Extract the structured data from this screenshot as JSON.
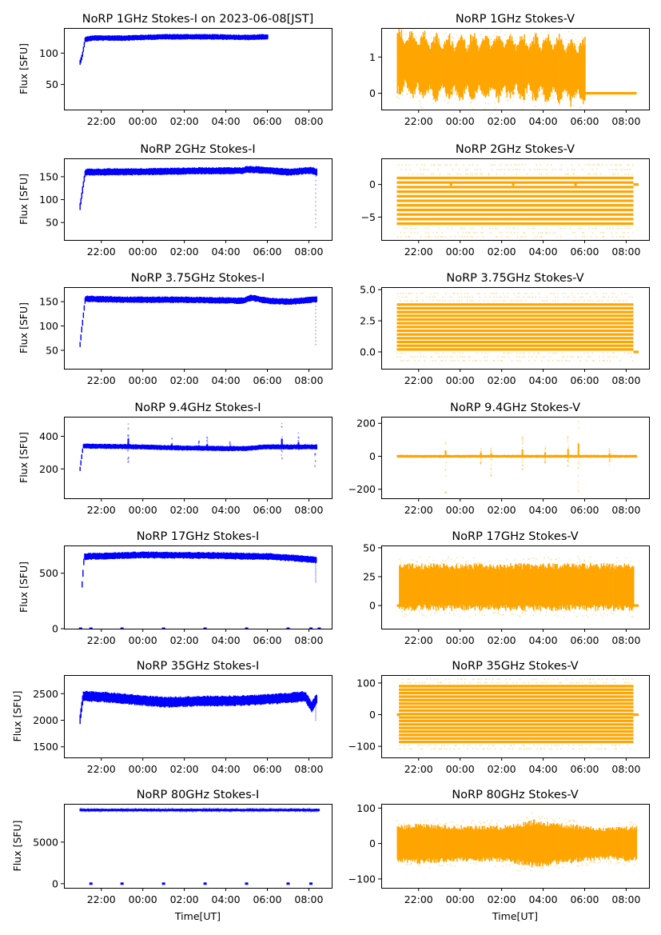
{
  "figure": {
    "type": "multi-panel time series (scatter)",
    "rows": 7,
    "cols": 2
  },
  "chart_data": [
    {
      "id": "1ghz-i",
      "type": "scatter",
      "row": 0,
      "col": 0,
      "title": "NoRP 1GHz Stokes-I on 2023-06-08[JST]",
      "xlabel": "",
      "ylabel": "Flux [SFU]",
      "color": "#0000ff",
      "xlim_hours": [
        20.2,
        33.1
      ],
      "xticks": [
        "22:00",
        "00:00",
        "02:00",
        "04:00",
        "06:00",
        "08:00"
      ],
      "xtick_hours": [
        22,
        24,
        26,
        28,
        30,
        32
      ],
      "ylim": [
        10,
        140
      ],
      "yticks": [
        50,
        100
      ],
      "series": {
        "start_hour": 20.95,
        "end_hour": 30.0,
        "profile": [
          [
            20.95,
            85
          ],
          [
            21.05,
            95
          ],
          [
            21.2,
            122
          ],
          [
            21.6,
            124
          ],
          [
            23.0,
            124
          ],
          [
            25.0,
            126
          ],
          [
            27.0,
            126
          ],
          [
            29.0,
            125
          ],
          [
            30.0,
            126
          ]
        ],
        "band": 4,
        "outliers": "none",
        "extra_segments": []
      }
    },
    {
      "id": "1ghz-v",
      "type": "scatter",
      "row": 0,
      "col": 1,
      "title": "NoRP 1GHz Stokes-V",
      "xlabel": "",
      "ylabel": "",
      "color": "#ffa500",
      "xlim_hours": [
        20.2,
        33.1
      ],
      "xticks": [
        "22:00",
        "00:00",
        "02:00",
        "04:00",
        "06:00",
        "08:00"
      ],
      "xtick_hours": [
        22,
        24,
        26,
        28,
        30,
        32
      ],
      "ylim": [
        -0.45,
        1.8
      ],
      "yticks": [
        0,
        1
      ],
      "series": {
        "start_hour": 20.95,
        "end_hour": 30.0,
        "profile": [
          [
            20.95,
            0.9
          ],
          [
            22,
            0.75
          ],
          [
            24,
            0.7
          ],
          [
            26,
            0.75
          ],
          [
            28,
            0.7
          ],
          [
            30,
            0.6
          ]
        ],
        "band": 0.9,
        "outliers": "sparse",
        "extra_segments": [
          {
            "from_hour": 30.0,
            "to_hour": 32.5,
            "value": 0.0
          },
          {
            "from_hour": 23.5,
            "to_hour": 23.6,
            "value": 0.0
          },
          {
            "from_hour": 26.5,
            "to_hour": 26.6,
            "value": 0.0
          }
        ]
      }
    },
    {
      "id": "2ghz-i",
      "type": "scatter",
      "row": 1,
      "col": 0,
      "title": "NoRP 2GHz Stokes-I",
      "xlabel": "",
      "ylabel": "Flux [SFU]",
      "color": "#0000ff",
      "xlim_hours": [
        20.2,
        33.1
      ],
      "xticks": [
        "22:00",
        "00:00",
        "02:00",
        "04:00",
        "06:00",
        "08:00"
      ],
      "xtick_hours": [
        22,
        24,
        26,
        28,
        30,
        32
      ],
      "ylim": [
        12,
        190
      ],
      "yticks": [
        50,
        100,
        150
      ],
      "series": {
        "start_hour": 20.95,
        "end_hour": 32.35,
        "profile": [
          [
            20.95,
            85
          ],
          [
            21.2,
            160
          ],
          [
            24,
            161
          ],
          [
            27,
            163
          ],
          [
            28.8,
            163
          ],
          [
            29,
            166
          ],
          [
            30,
            164
          ],
          [
            31,
            160
          ],
          [
            32.1,
            164
          ],
          [
            32.35,
            160
          ]
        ],
        "band": 7,
        "outliers": "drop-at-end",
        "extra_segments": []
      }
    },
    {
      "id": "2ghz-v",
      "type": "scatter",
      "row": 1,
      "col": 1,
      "title": "NoRP 2GHz Stokes-V",
      "xlabel": "",
      "ylabel": "",
      "color": "#ffa500",
      "xlim_hours": [
        20.2,
        33.1
      ],
      "xticks": [
        "22:00",
        "00:00",
        "02:00",
        "04:00",
        "06:00",
        "08:00"
      ],
      "xtick_hours": [
        22,
        24,
        26,
        28,
        30,
        32
      ],
      "ylim": [
        -8.5,
        4.0
      ],
      "yticks": [
        -5,
        0
      ],
      "series": {
        "start_hour": 20.95,
        "end_hour": 32.35,
        "quantized_levels": [
          -6.0,
          -5.3,
          -4.6,
          -3.9,
          -3.2,
          -2.5,
          -1.8,
          -1.1,
          -0.4,
          0.3,
          1.0
        ],
        "sparse_levels": [
          -8.0,
          -7.4,
          -6.7,
          1.6,
          2.3,
          3.0
        ],
        "outliers": "sparse",
        "extra_segments": [
          {
            "from_hour": 23.5,
            "to_hour": 23.6,
            "value": 0.0
          },
          {
            "from_hour": 26.5,
            "to_hour": 26.6,
            "value": 0.0
          },
          {
            "from_hour": 29.5,
            "to_hour": 29.6,
            "value": 0.0
          },
          {
            "from_hour": 32.35,
            "to_hour": 32.6,
            "value": 0.0
          }
        ]
      }
    },
    {
      "id": "375ghz-i",
      "type": "scatter",
      "row": 2,
      "col": 0,
      "title": "NoRP 3.75GHz Stokes-I",
      "xlabel": "",
      "ylabel": "Flux [SFU]",
      "color": "#0000ff",
      "xlim_hours": [
        20.2,
        33.1
      ],
      "xticks": [
        "22:00",
        "00:00",
        "02:00",
        "04:00",
        "06:00",
        "08:00"
      ],
      "xtick_hours": [
        22,
        24,
        26,
        28,
        30,
        32
      ],
      "ylim": [
        12,
        180
      ],
      "yticks": [
        50,
        100,
        150
      ],
      "series": {
        "start_hour": 20.95,
        "end_hour": 32.35,
        "profile": [
          [
            20.95,
            62
          ],
          [
            21.2,
            156
          ],
          [
            23,
            154
          ],
          [
            26,
            154
          ],
          [
            28.8,
            152
          ],
          [
            29.2,
            158
          ],
          [
            30,
            152
          ],
          [
            31,
            150
          ],
          [
            32.35,
            155
          ]
        ],
        "band": 6,
        "outliers": "drop-at-end",
        "extra_segments": []
      }
    },
    {
      "id": "375ghz-v",
      "type": "scatter",
      "row": 2,
      "col": 1,
      "title": "NoRP 3.75GHz Stokes-V",
      "xlabel": "",
      "ylabel": "",
      "color": "#ffa500",
      "xlim_hours": [
        20.2,
        33.1
      ],
      "xticks": [
        "22:00",
        "00:00",
        "02:00",
        "04:00",
        "06:00",
        "08:00"
      ],
      "xtick_hours": [
        22,
        24,
        26,
        28,
        30,
        32
      ],
      "ylim": [
        -1.35,
        5.2
      ],
      "yticks": [
        "0.0",
        "2.5",
        "5.0"
      ],
      "ytick_values": [
        0,
        2.5,
        5.0
      ],
      "series": {
        "start_hour": 20.95,
        "end_hour": 32.35,
        "quantized_levels": [
          0.2,
          0.5,
          0.8,
          1.1,
          1.4,
          1.7,
          2.0,
          2.3,
          2.6,
          2.9,
          3.2,
          3.5,
          3.8
        ],
        "sparse_levels": [
          -0.7,
          -0.4,
          -0.1,
          4.1,
          4.4,
          4.7
        ],
        "outliers": "sparse",
        "extra_segments": [
          {
            "from_hour": 32.35,
            "to_hour": 32.6,
            "value": 0.0
          }
        ]
      }
    },
    {
      "id": "94ghz-i",
      "type": "scatter",
      "row": 3,
      "col": 0,
      "title": "NoRP 9.4GHz Stokes-I",
      "xlabel": "",
      "ylabel": "Flux [SFU]",
      "color": "#0000ff",
      "xlim_hours": [
        20.2,
        33.1
      ],
      "xticks": [
        "22:00",
        "00:00",
        "02:00",
        "04:00",
        "06:00",
        "08:00"
      ],
      "xtick_hours": [
        22,
        24,
        26,
        28,
        30,
        32
      ],
      "ylim": [
        20,
        520
      ],
      "yticks": [
        200,
        400
      ],
      "series": {
        "start_hour": 20.95,
        "end_hour": 32.35,
        "profile": [
          [
            20.95,
            200
          ],
          [
            21.1,
            340
          ],
          [
            24,
            335
          ],
          [
            26,
            328
          ],
          [
            28,
            325
          ],
          [
            29,
            325
          ],
          [
            29.8,
            335
          ],
          [
            31,
            335
          ],
          [
            32.35,
            335
          ]
        ],
        "band": 14,
        "spikes": [
          [
            23.3,
            480,
            240
          ],
          [
            25.4,
            390,
            320
          ],
          [
            26.7,
            375,
            320
          ],
          [
            27.1,
            400,
            320
          ],
          [
            28.2,
            370,
            330
          ],
          [
            30.7,
            480,
            260
          ],
          [
            31.5,
            420,
            320
          ],
          [
            32.3,
            340,
            200
          ]
        ],
        "outliers": "spikes",
        "extra_segments": []
      }
    },
    {
      "id": "94ghz-v",
      "type": "scatter",
      "row": 3,
      "col": 1,
      "title": "NoRP 9.4GHz Stokes-V",
      "xlabel": "",
      "ylabel": "",
      "color": "#ffa500",
      "xlim_hours": [
        20.2,
        33.1
      ],
      "xticks": [
        "22:00",
        "00:00",
        "02:00",
        "04:00",
        "06:00",
        "08:00"
      ],
      "xtick_hours": [
        22,
        24,
        26,
        28,
        30,
        32
      ],
      "ylim": [
        -255,
        240
      ],
      "yticks": [
        -200,
        0,
        200
      ],
      "series": {
        "start_hour": 20.95,
        "end_hour": 32.5,
        "profile": [
          [
            20.95,
            0
          ],
          [
            32.5,
            0
          ]
        ],
        "band": 8,
        "spikes": [
          [
            23.3,
            100,
            -230
          ],
          [
            25.0,
            60,
            -50
          ],
          [
            25.5,
            50,
            -130
          ],
          [
            27.0,
            120,
            -80
          ],
          [
            28.1,
            70,
            -40
          ],
          [
            29.2,
            120,
            -60
          ],
          [
            29.7,
            220,
            -220
          ],
          [
            31.2,
            50,
            -60
          ]
        ],
        "outliers": "spikes",
        "extra_segments": []
      }
    },
    {
      "id": "17ghz-i",
      "type": "scatter",
      "row": 4,
      "col": 0,
      "title": "NoRP 17GHz Stokes-I",
      "xlabel": "",
      "ylabel": "Flux [SFU]",
      "color": "#0000ff",
      "xlim_hours": [
        20.2,
        33.1
      ],
      "xticks": [
        "22:00",
        "00:00",
        "02:00",
        "04:00",
        "06:00",
        "08:00"
      ],
      "xtick_hours": [
        22,
        24,
        26,
        28,
        30,
        32
      ],
      "ylim": [
        0,
        750
      ],
      "yticks": [
        0,
        500
      ],
      "series": {
        "start_hour": 21.05,
        "end_hour": 32.35,
        "profile": [
          [
            21.05,
            400
          ],
          [
            21.15,
            650
          ],
          [
            24,
            665
          ],
          [
            27,
            660
          ],
          [
            30,
            650
          ],
          [
            31,
            640
          ],
          [
            32,
            625
          ],
          [
            32.35,
            620
          ]
        ],
        "band": 28,
        "outliers": "drop-at-end",
        "zero_markers_hours": [
          21.0,
          21.5,
          23.0,
          25.0,
          27.0,
          29.0,
          31.0,
          32.1,
          32.5
        ],
        "extra_segments": []
      }
    },
    {
      "id": "17ghz-v",
      "type": "scatter",
      "row": 4,
      "col": 1,
      "title": "NoRP 17GHz Stokes-V",
      "xlabel": "",
      "ylabel": "",
      "color": "#ffa500",
      "xlim_hours": [
        20.2,
        33.1
      ],
      "xticks": [
        "22:00",
        "00:00",
        "02:00",
        "04:00",
        "06:00",
        "08:00"
      ],
      "xtick_hours": [
        22,
        24,
        26,
        28,
        30,
        32
      ],
      "ylim": [
        -20,
        52
      ],
      "yticks": [
        0,
        25,
        50
      ],
      "series": {
        "start_hour": 21.05,
        "end_hour": 32.35,
        "profile": [
          [
            21.05,
            16
          ],
          [
            32.35,
            16
          ]
        ],
        "band": 18,
        "outliers": "sparse",
        "extra_segments": [
          {
            "from_hour": 20.95,
            "to_hour": 21.1,
            "value": 0.0
          },
          {
            "from_hour": 32.35,
            "to_hour": 32.6,
            "value": 0.0
          }
        ]
      }
    },
    {
      "id": "35ghz-i",
      "type": "scatter",
      "row": 5,
      "col": 0,
      "title": "NoRP 35GHz Stokes-I",
      "xlabel": "",
      "ylabel": "Flux [SFU]",
      "color": "#0000ff",
      "xlim_hours": [
        20.2,
        33.1
      ],
      "xticks": [
        "22:00",
        "00:00",
        "02:00",
        "04:00",
        "06:00",
        "08:00"
      ],
      "xtick_hours": [
        22,
        24,
        26,
        28,
        30,
        32
      ],
      "ylim": [
        1300,
        2850
      ],
      "yticks": [
        1500,
        2000,
        2500
      ],
      "series": {
        "start_hour": 20.95,
        "end_hour": 32.35,
        "profile": [
          [
            20.95,
            2020
          ],
          [
            21.1,
            2450
          ],
          [
            22,
            2440
          ],
          [
            24,
            2370
          ],
          [
            25,
            2340
          ],
          [
            27,
            2360
          ],
          [
            29,
            2370
          ],
          [
            31,
            2420
          ],
          [
            31.8,
            2450
          ],
          [
            32.1,
            2250
          ],
          [
            32.35,
            2400
          ]
        ],
        "band": 90,
        "outliers": "drop-at-end",
        "extra_segments": []
      }
    },
    {
      "id": "35ghz-v",
      "type": "scatter",
      "row": 5,
      "col": 1,
      "title": "NoRP 35GHz Stokes-V",
      "xlabel": "",
      "ylabel": "",
      "color": "#ffa500",
      "xlim_hours": [
        20.2,
        33.1
      ],
      "xticks": [
        "22:00",
        "00:00",
        "02:00",
        "04:00",
        "06:00",
        "08:00"
      ],
      "xtick_hours": [
        22,
        24,
        26,
        28,
        30,
        32
      ],
      "ylim": [
        -135,
        125
      ],
      "yticks": [
        -100,
        0,
        100
      ],
      "series": {
        "start_hour": 21.05,
        "end_hour": 32.35,
        "quantized_levels": [
          -86,
          -75,
          -64,
          -53,
          -42,
          -31,
          -20,
          -9,
          2,
          13,
          24,
          35,
          46,
          57,
          68,
          79,
          90
        ],
        "sparse_levels": [
          -108,
          -97,
          101,
          112
        ],
        "outliers": "sparse",
        "extra_segments": [
          {
            "from_hour": 20.95,
            "to_hour": 21.1,
            "value": 0.0
          },
          {
            "from_hour": 32.35,
            "to_hour": 32.6,
            "value": 0.0
          }
        ]
      }
    },
    {
      "id": "80ghz-i",
      "type": "scatter",
      "row": 6,
      "col": 0,
      "title": "NoRP 80GHz Stokes-I",
      "xlabel": "Time[UT]",
      "ylabel": "Flux [SFU]",
      "color": "#0000ff",
      "xlim_hours": [
        20.2,
        33.1
      ],
      "xticks": [
        "22:00",
        "00:00",
        "02:00",
        "04:00",
        "06:00",
        "08:00"
      ],
      "xtick_hours": [
        22,
        24,
        26,
        28,
        30,
        32
      ],
      "ylim": [
        -500,
        9600
      ],
      "yticks": [
        0,
        5000
      ],
      "series": {
        "start_hour": 20.95,
        "end_hour": 32.5,
        "profile": [
          [
            20.95,
            8850
          ],
          [
            32.5,
            8850
          ]
        ],
        "band": 150,
        "outliers": "sparse",
        "zero_markers_hours": [
          21.5,
          23.0,
          25.0,
          27.0,
          29.0,
          31.0,
          32.1
        ],
        "extra_segments": []
      }
    },
    {
      "id": "80ghz-v",
      "type": "scatter",
      "row": 6,
      "col": 1,
      "title": "NoRP 80GHz Stokes-V",
      "xlabel": "Time[UT]",
      "ylabel": "",
      "color": "#ffa500",
      "xlim_hours": [
        20.2,
        33.1
      ],
      "xticks": [
        "22:00",
        "00:00",
        "02:00",
        "04:00",
        "06:00",
        "08:00"
      ],
      "xtick_hours": [
        22,
        24,
        26,
        28,
        30,
        32
      ],
      "ylim": [
        -125,
        112
      ],
      "yticks": [
        -100,
        0,
        100
      ],
      "series": {
        "start_hour": 20.95,
        "end_hour": 32.5,
        "profile": [
          [
            20.95,
            0
          ],
          [
            32.5,
            0
          ]
        ],
        "band_profile": [
          [
            20.95,
            45
          ],
          [
            22,
            50
          ],
          [
            24,
            45
          ],
          [
            26,
            45
          ],
          [
            27.5,
            60
          ],
          [
            29,
            50
          ],
          [
            31,
            40
          ],
          [
            32.5,
            45
          ]
        ],
        "outliers": "sparse",
        "extra_segments": []
      }
    }
  ]
}
